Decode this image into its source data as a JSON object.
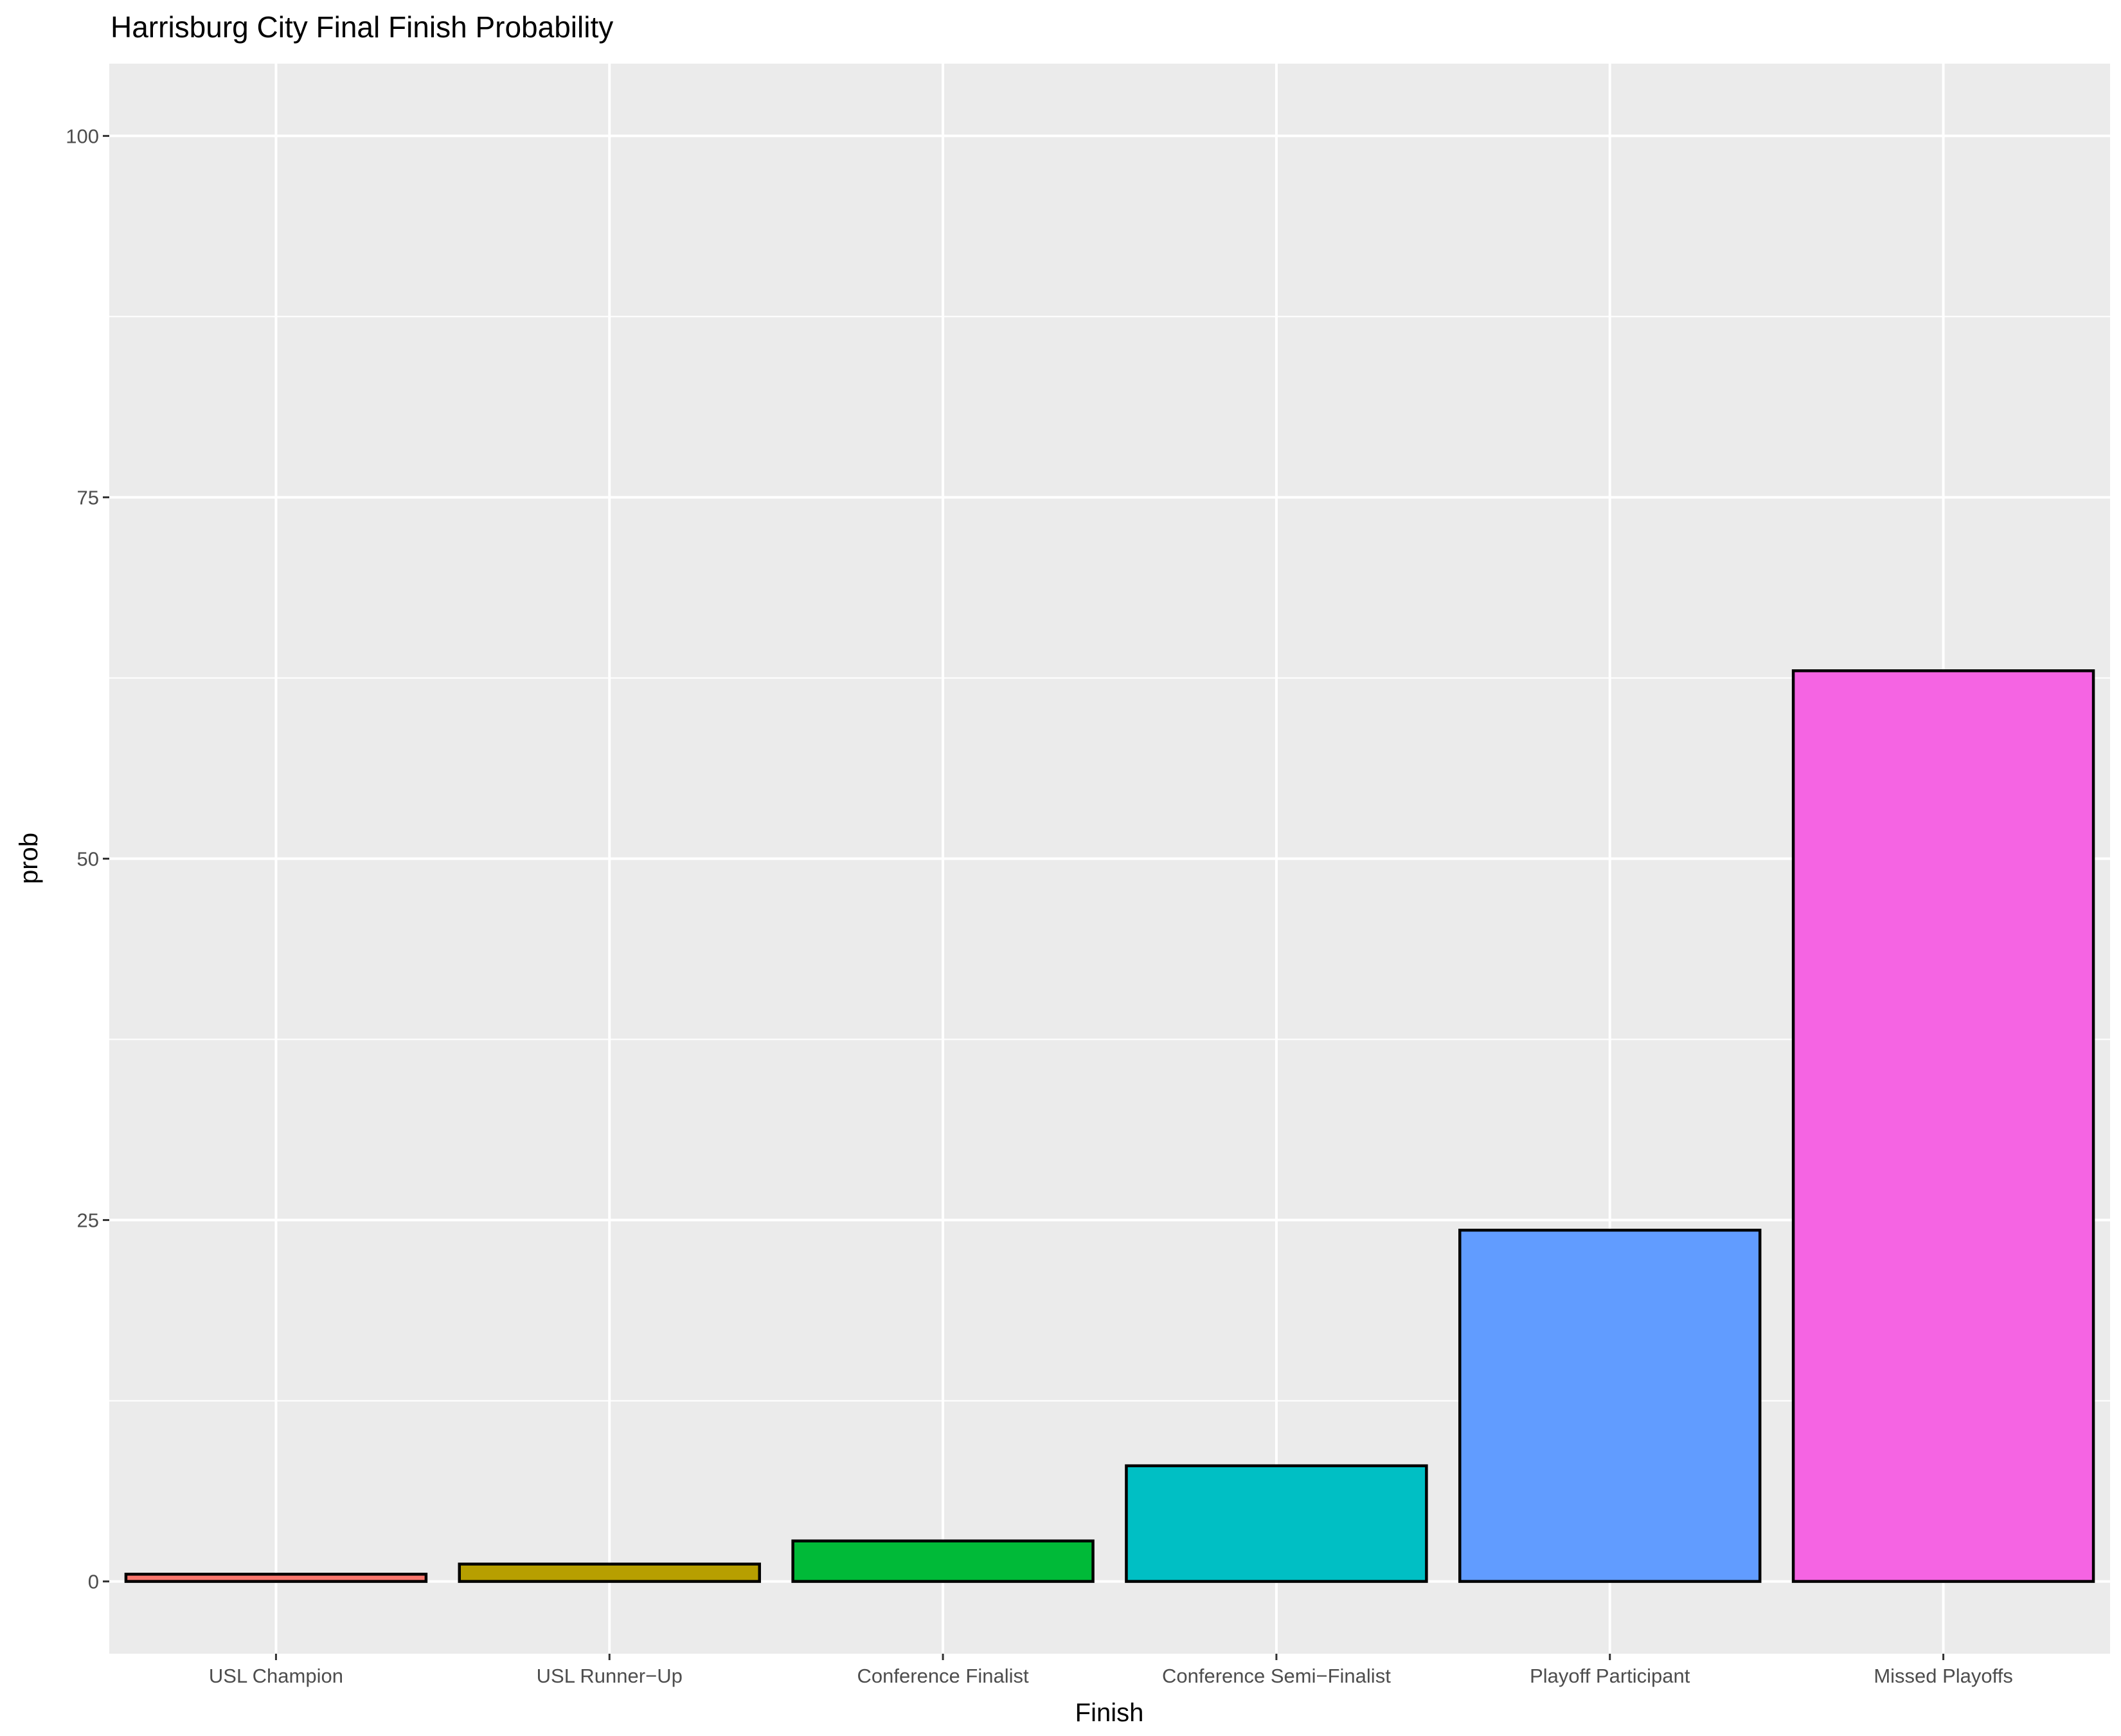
{
  "chart_data": {
    "type": "bar",
    "title": "Harrisburg City Final Finish Probability",
    "xlabel": "Finish",
    "ylabel": "prob",
    "categories": [
      "USL Champion",
      "USL Runner−Up",
      "Conference Finalist",
      "Conference Semi−Finalist",
      "Playoff Participant",
      "Missed Playoffs"
    ],
    "values": [
      0.5,
      1.2,
      2.8,
      8.0,
      24.3,
      63.0
    ],
    "colors": [
      "#F8766D",
      "#B79F00",
      "#00BA38",
      "#00BFC4",
      "#619CFF",
      "#F564E3"
    ],
    "ylim": [
      -5,
      105
    ],
    "yticks": [
      0,
      25,
      50,
      75,
      100
    ],
    "ytick_labels": [
      "0",
      "25",
      "50",
      "75",
      "100"
    ],
    "grid": true,
    "panel_background": "#EBEBEB"
  }
}
